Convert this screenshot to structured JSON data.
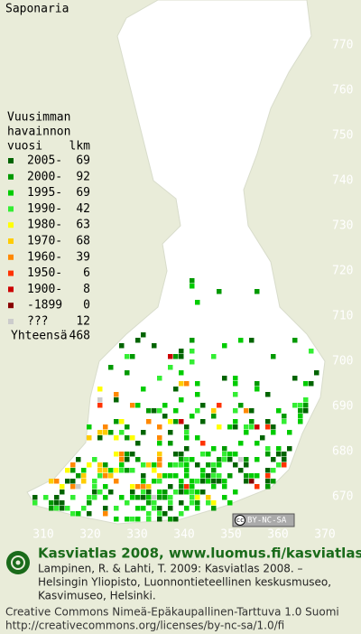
{
  "title": "Saponaria",
  "legend": {
    "heading": [
      "Vuusimman",
      "havainnon"
    ],
    "col_year": "vuosi",
    "col_count": "lkm",
    "rows": [
      {
        "label": "2005-",
        "count": 69,
        "color": "#006400"
      },
      {
        "label": "2000-",
        "count": 92,
        "color": "#009900"
      },
      {
        "label": "1995-",
        "count": 69,
        "color": "#00cc00"
      },
      {
        "label": "1990-",
        "count": 42,
        "color": "#33ee33"
      },
      {
        "label": "1980-",
        "count": 63,
        "color": "#ffff00"
      },
      {
        "label": "1970-",
        "count": 68,
        "color": "#ffcc00"
      },
      {
        "label": "1960-",
        "count": 39,
        "color": "#ff8800"
      },
      {
        "label": "1950-",
        "count": 6,
        "color": "#ff3300"
      },
      {
        "label": "1900-",
        "count": 8,
        "color": "#cc0000"
      },
      {
        "label": "-1899",
        "count": 0,
        "color": "#880000"
      },
      {
        "label": "???",
        "count": 12,
        "color": "#cccccc"
      }
    ],
    "total_label": "Yhteensä",
    "total": 468
  },
  "axes": {
    "y_labels": [
      770,
      760,
      750,
      740,
      730,
      720,
      710,
      700,
      690,
      680,
      670
    ],
    "x_labels": [
      310,
      320,
      330,
      340,
      350,
      360,
      370
    ]
  },
  "badge": {
    "icon": "cc",
    "text": "BY-NC-SA"
  },
  "footer": {
    "brand": "Kasviatlas 2008, www.luomus.fi/kasviatlas",
    "citation": [
      "Lampinen, R. & Lahti, T. 2009: Kasviatlas 2008. –",
      "Helsingin Yliopisto, Luonnontieteellinen keskusmuseo,",
      "Kasvimuseo, Helsinki."
    ],
    "license": [
      "Creative Commons Nimeä-Epäkaupallinen-Tarttuva 1.0 Suomi",
      "http://creativecommons.org/licenses/by-nc-sa/1.0/fi"
    ]
  }
}
